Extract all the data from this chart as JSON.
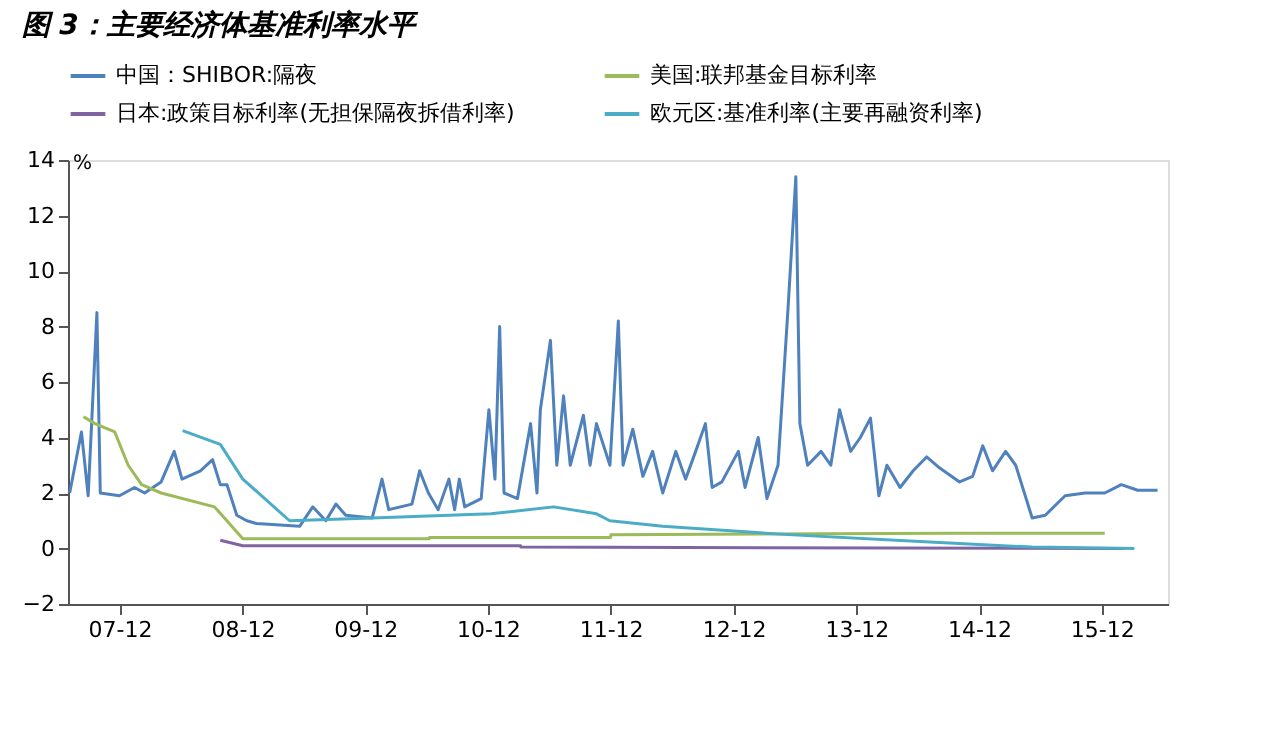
{
  "chart_data": {
    "type": "line",
    "title": "图 3：主要经济体基准利率水平",
    "ylabel": "%",
    "ylim": [
      -2,
      14
    ],
    "yticks": [
      -2,
      0,
      2,
      4,
      6,
      8,
      10,
      12,
      14
    ],
    "xlim": [
      "2007-07-01",
      "2016-06-15"
    ],
    "xticks": [
      {
        "value": "2007-12-01",
        "label": "07-12"
      },
      {
        "value": "2008-12-01",
        "label": "08-12"
      },
      {
        "value": "2009-12-01",
        "label": "09-12"
      },
      {
        "value": "2010-12-01",
        "label": "10-12"
      },
      {
        "value": "2011-12-01",
        "label": "11-12"
      },
      {
        "value": "2012-12-01",
        "label": "12-12"
      },
      {
        "value": "2013-12-01",
        "label": "13-12"
      },
      {
        "value": "2014-12-01",
        "label": "14-12"
      },
      {
        "value": "2015-12-01",
        "label": "15-12"
      }
    ],
    "grid": false,
    "legend": "top",
    "line_style": "solid",
    "marker": "none",
    "series": [
      {
        "name": "中国：SHIBOR:隔夜",
        "color": "#4f81bd",
        "x": [
          "2007-07-06",
          "2007-08-10",
          "2007-08-30",
          "2007-09-25",
          "2007-10-05",
          "2007-12-01",
          "2008-01-15",
          "2008-02-14",
          "2008-04-03",
          "2008-05-12",
          "2008-06-04",
          "2008-07-29",
          "2008-09-03",
          "2008-09-26",
          "2008-10-16",
          "2008-11-14",
          "2008-12-14",
          "2009-01-12",
          "2009-05-20",
          "2009-06-28",
          "2009-08-06",
          "2009-09-05",
          "2009-10-04",
          "2009-12-22",
          "2010-01-20",
          "2010-02-09",
          "2010-04-19",
          "2010-05-12",
          "2010-06-07",
          "2010-07-06",
          "2010-08-07",
          "2010-08-24",
          "2010-09-07",
          "2010-09-23",
          "2010-11-11",
          "2010-12-04",
          "2010-12-22",
          "2011-01-05",
          "2011-01-18",
          "2011-02-27",
          "2011-04-07",
          "2011-04-26",
          "2011-05-06",
          "2011-06-05",
          "2011-06-24",
          "2011-07-14",
          "2011-08-03",
          "2011-09-11",
          "2011-10-01",
          "2011-10-20",
          "2011-11-29",
          "2011-12-24",
          "2012-01-07",
          "2012-02-05",
          "2012-03-06",
          "2012-04-04",
          "2012-05-04",
          "2012-06-12",
          "2012-07-11",
          "2012-08-10",
          "2012-09-08",
          "2012-09-28",
          "2012-10-27",
          "2012-12-15",
          "2013-01-04",
          "2013-02-12",
          "2013-03-10",
          "2013-04-12",
          "2013-05-12",
          "2013-06-04",
          "2013-06-16",
          "2013-07-09",
          "2013-08-18",
          "2013-09-16",
          "2013-10-12",
          "2013-11-14",
          "2013-12-13",
          "2014-01-12",
          "2014-02-06",
          "2014-03-02",
          "2014-04-10",
          "2014-05-19",
          "2014-06-28",
          "2014-08-06",
          "2014-10-04",
          "2014-11-12",
          "2014-12-12",
          "2015-01-10",
          "2015-02-18",
          "2015-03-20",
          "2015-05-08",
          "2015-06-16",
          "2015-08-14",
          "2015-10-12",
          "2015-12-10",
          "2016-01-28",
          "2016-03-17",
          "2016-05-15"
        ],
        "values": [
          2.0,
          4.2,
          1.9,
          8.5,
          2.0,
          1.9,
          2.2,
          2.0,
          2.4,
          3.5,
          2.5,
          2.8,
          3.2,
          2.3,
          2.3,
          1.2,
          1.0,
          0.9,
          0.8,
          1.5,
          1.0,
          1.6,
          1.2,
          1.1,
          2.5,
          1.4,
          1.6,
          2.8,
          2.0,
          1.4,
          2.5,
          1.4,
          2.5,
          1.5,
          1.8,
          5.0,
          2.5,
          8.0,
          2.0,
          1.8,
          4.5,
          2.0,
          5.0,
          7.5,
          3.0,
          5.5,
          3.0,
          4.8,
          3.0,
          4.5,
          3.0,
          8.2,
          3.0,
          4.3,
          2.6,
          3.5,
          2.0,
          3.5,
          2.5,
          3.5,
          4.5,
          2.2,
          2.4,
          3.5,
          2.2,
          4.0,
          1.8,
          3.0,
          8.7,
          13.4,
          4.5,
          3.0,
          3.5,
          3.0,
          5.0,
          3.5,
          4.0,
          4.7,
          1.9,
          3.0,
          2.2,
          2.8,
          3.3,
          2.9,
          2.4,
          2.6,
          3.7,
          2.8,
          3.5,
          3.0,
          1.1,
          1.2,
          1.9,
          2.0,
          2.0,
          2.3,
          2.1,
          2.1
        ]
      },
      {
        "name": "美国:联邦基金目标利率",
        "color": "#9bbb59",
        "x": [
          "2007-08-16",
          "2007-09-19",
          "2007-11-17",
          "2007-12-27",
          "2008-02-05",
          "2008-04-03",
          "2008-09-09",
          "2008-12-02",
          "2010-06-09",
          "2010-06-10",
          "2011-12-01",
          "2011-12-02",
          "2014-09-01",
          "2015-12-10"
        ],
        "values": [
          4.75,
          4.5,
          4.2,
          3.0,
          2.3,
          2.0,
          1.5,
          0.35,
          0.35,
          0.4,
          0.4,
          0.5,
          0.55,
          0.55
        ]
      },
      {
        "name": "日本:政策目标利率(无担保隔夜拆借利率)",
        "color": "#8064a2",
        "x": [
          "2008-09-26",
          "2008-12-02",
          "2011-03-08",
          "2011-03-09",
          "2016-02-07"
        ],
        "values": [
          0.3,
          0.1,
          0.1,
          0.05,
          0.0
        ]
      },
      {
        "name": "欧元区:基准利率(主要再融资利率)",
        "color": "#4bacc6",
        "x": [
          "2008-06-06",
          "2008-09-26",
          "2008-12-02",
          "2009-04-20",
          "2009-12-22",
          "2010-12-10",
          "2011-06-15",
          "2011-10-20",
          "2011-11-29",
          "2012-05-04",
          "2013-05-12",
          "2014-06-08",
          "2015-05-08",
          "2016-03-07"
        ],
        "values": [
          4.25,
          3.75,
          2.5,
          1.0,
          1.1,
          1.25,
          1.5,
          1.25,
          1.0,
          0.8,
          0.5,
          0.25,
          0.05,
          0.0
        ]
      }
    ]
  }
}
